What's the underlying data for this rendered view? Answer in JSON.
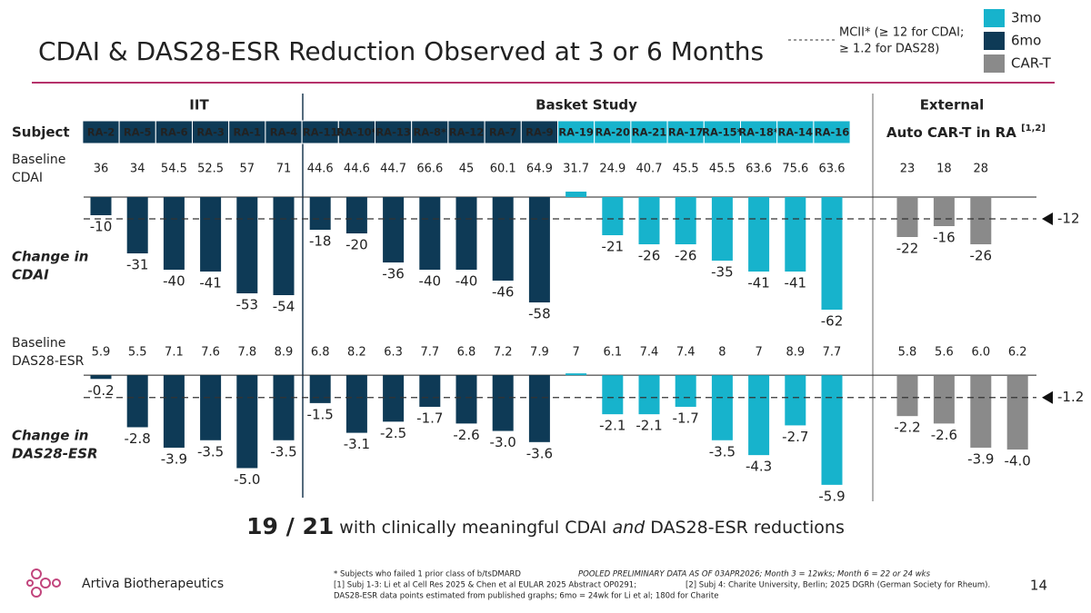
{
  "title": "CDAI & DAS28-ESR Reduction Observed at 3 or 6 Months",
  "legend": {
    "threshold_text": [
      "MCII* (≥ 12 for CDAI;",
      "≥ 1.2 for DAS28)"
    ],
    "items": [
      {
        "name": "3mo",
        "color": "#17b3cc"
      },
      {
        "name": "6mo",
        "color": "#0e3a56"
      },
      {
        "name": "CAR-T",
        "color": "#8a8a8a"
      }
    ]
  },
  "groups": [
    "IIT",
    "Basket Study",
    "External"
  ],
  "subject_label": "Subject",
  "external_label": "Auto CAR-T in RA",
  "external_ref": "[1,2]",
  "chart_data": [
    {
      "type": "bar",
      "label": [
        "Change in",
        "CDAI"
      ],
      "baseline_label": [
        "Baseline",
        "CDAI"
      ],
      "baseline": [
        "36",
        "34",
        "54.5",
        "52.5",
        "57",
        "71",
        "44.6",
        "44.6",
        "44.7",
        "66.6",
        "45",
        "60.1",
        "64.9",
        "31.7",
        "24.9",
        "40.7",
        "45.5",
        "45.5",
        "63.6",
        "75.6",
        "63.6",
        "23",
        "18",
        "28"
      ],
      "categories": [
        "RA-2",
        "RA-5",
        "RA-6",
        "RA-3",
        "RA-1",
        "RA-4",
        "RA-11",
        "RA-10*",
        "RA-13",
        "RA-8*",
        "RA-12",
        "RA-7",
        "RA-9",
        "RA-19",
        "RA-20",
        "RA-21",
        "RA-17",
        "RA-15*",
        "RA-18*",
        "RA-14",
        "RA-16",
        null,
        null,
        null
      ],
      "values": [
        -10,
        -31,
        -40,
        -41,
        -53,
        -54,
        -18,
        -20,
        -36,
        -40,
        -40,
        -46,
        -58,
        3,
        -21,
        -26,
        -26,
        -35,
        -41,
        -41,
        -62,
        -22,
        -16,
        -26
      ],
      "value_labels": [
        "-10",
        "-31",
        "-40",
        "-41",
        "-53",
        "-54",
        "-18",
        "-20",
        "-36",
        "-40",
        "-40",
        "-46",
        "-58",
        null,
        "-21",
        "-26",
        "-26",
        "-35",
        "-41",
        "-41",
        "-62",
        "-22",
        "-16",
        "-26"
      ],
      "colors": [
        "#0e3a56",
        "#0e3a56",
        "#0e3a56",
        "#0e3a56",
        "#0e3a56",
        "#0e3a56",
        "#0e3a56",
        "#0e3a56",
        "#0e3a56",
        "#0e3a56",
        "#0e3a56",
        "#0e3a56",
        "#0e3a56",
        "#17b3cc",
        "#17b3cc",
        "#17b3cc",
        "#17b3cc",
        "#17b3cc",
        "#17b3cc",
        "#17b3cc",
        "#17b3cc",
        "#8a8a8a",
        "#8a8a8a",
        "#8a8a8a"
      ],
      "ylim": [
        -65,
        6
      ],
      "threshold": -12
    },
    {
      "type": "bar",
      "label": [
        "Change in",
        "DAS28-ESR"
      ],
      "baseline_label": [
        "Baseline",
        "DAS28-ESR"
      ],
      "baseline": [
        "5.9",
        "5.5",
        "7.1",
        "7.6",
        "7.8",
        "8.9",
        "6.8",
        "8.2",
        "6.3",
        "7.7",
        "6.8",
        "7.2",
        "7.9",
        "7",
        "6.1",
        "7.4",
        "7.4",
        "8",
        "7",
        "8.9",
        "7.7",
        "5.8",
        "5.6",
        "6.0",
        "6.2"
      ],
      "categories": [
        "RA-2",
        "RA-5",
        "RA-6",
        "RA-3",
        "RA-1",
        "RA-4",
        "RA-11",
        "RA-10*",
        "RA-13",
        "RA-8*",
        "RA-12",
        "RA-7",
        "RA-9",
        "RA-19",
        "RA-20",
        "RA-21",
        "RA-17",
        "RA-15*",
        "RA-18*",
        "RA-14",
        "RA-16",
        null,
        null,
        null,
        null
      ],
      "values": [
        -0.2,
        -2.8,
        -3.9,
        -3.5,
        -5.0,
        -3.5,
        -1.5,
        -3.1,
        -2.5,
        -1.7,
        -2.6,
        -3.0,
        -3.6,
        0.1,
        -2.1,
        -2.1,
        -1.7,
        -3.5,
        -4.3,
        -2.7,
        -5.9,
        -2.2,
        -2.6,
        -3.9,
        -4.0
      ],
      "value_labels": [
        "-0.2",
        "-2.8",
        "-3.9",
        "-3.5",
        "-5.0",
        "-3.5",
        "-1.5",
        "-3.1",
        "-2.5",
        "-1.7",
        "-2.6",
        "-3.0",
        "-3.6",
        null,
        "-2.1",
        "-2.1",
        "-1.7",
        "-3.5",
        "-4.3",
        "-2.7",
        "-5.9",
        "-2.2",
        "-2.6",
        "-3.9",
        "-4.0"
      ],
      "colors": [
        "#0e3a56",
        "#0e3a56",
        "#0e3a56",
        "#0e3a56",
        "#0e3a56",
        "#0e3a56",
        "#0e3a56",
        "#0e3a56",
        "#0e3a56",
        "#0e3a56",
        "#0e3a56",
        "#0e3a56",
        "#0e3a56",
        "#17b3cc",
        "#17b3cc",
        "#17b3cc",
        "#17b3cc",
        "#17b3cc",
        "#17b3cc",
        "#17b3cc",
        "#17b3cc",
        "#8a8a8a",
        "#8a8a8a",
        "#8a8a8a",
        "#8a8a8a"
      ],
      "ylim": [
        -6.2,
        0.4
      ],
      "threshold": -1.2
    }
  ],
  "headline": {
    "highlight": "19 / 21",
    "parts": [
      " with clinically meaningful CDAI ",
      "and",
      " DAS28-ESR reductions"
    ]
  },
  "footnotes": {
    "subjects": "* Subjects who failed 1 prior class of b/tsDMARD",
    "pooled": "POOLED PRELIMINARY DATA AS OF 03APR2026; Month 3 = 12wks; Month 6 = 22 or 24 wks",
    "ref1": "[1] Subj 1-3: Li et al Cell Res 2025 & Chen et al EULAR 2025 Abstract OP0291;",
    "ref2": "[2] Subj 4: Charite University, Berlin; 2025 DGRh (German Society for Rheum).",
    "estimate": "DAS28-ESR data points estimated from published graphs; 6mo = 24wk for Li et al; 180d for Charite"
  },
  "company": "Artiva Biotherapeutics",
  "page_number": "14"
}
